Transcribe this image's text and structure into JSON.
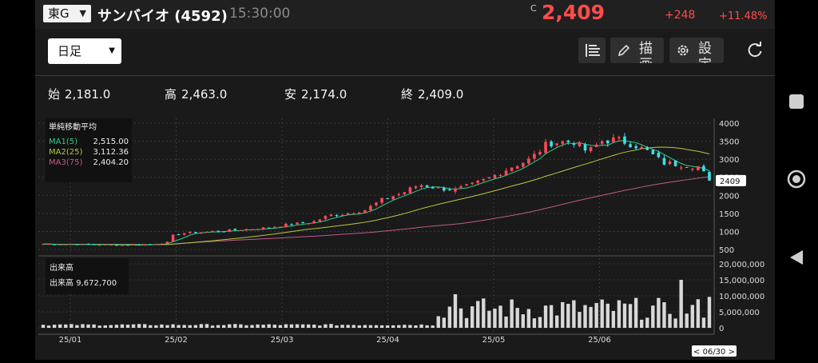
{
  "header": {
    "market": "東G",
    "title": "サンバイオ (4592)",
    "time": "15:30:00",
    "close_mark": "C",
    "price": "2,409",
    "change": "+248",
    "change_pct": "+11.48%"
  },
  "toolbar": {
    "period": "日足",
    "draw_label": "描画",
    "settings_label": "設定"
  },
  "ohlc": {
    "open_label": "始",
    "open": "2,181.0",
    "high_label": "高",
    "high": "2,463.0",
    "low_label": "安",
    "low": "2,174.0",
    "close_label": "終",
    "close": "2,409.0"
  },
  "legend": {
    "title": "単純移動平均",
    "ma1_label": "MA1(5)",
    "ma1_value": "2,515.00",
    "ma2_label": "MA2(25)",
    "ma2_value": "3,112.36",
    "ma3_label": "MA3(75)",
    "ma3_value": "2,404.20"
  },
  "volume_legend": {
    "title": "出来高",
    "label": "出来高",
    "value": "9,672,700"
  },
  "colors": {
    "up": "#ff4a5a",
    "down": "#3ee0e6",
    "ma1": "#2ecc8a",
    "ma2": "#b8c840",
    "ma3": "#c05a8a",
    "volume": "#d8d8d8"
  },
  "chart_data": {
    "type": "candlestick",
    "y_ticks": [
      "4000",
      "3500",
      "3000",
      "2500",
      "2000",
      "1500",
      "1000",
      "500"
    ],
    "y_range": [
      500,
      4000
    ],
    "volume_ticks": [
      "20,000,000",
      "15,000,000",
      "10,000,000",
      "5,000,000",
      "0"
    ],
    "volume_range": [
      0,
      20000000
    ],
    "x_labels": [
      "25/01",
      "25/02",
      "25/03",
      "25/04",
      "25/05",
      "25/06"
    ],
    "current_price_label": "2409",
    "current_date_label": "< 06/30 >",
    "last_close": 2409,
    "last_volume": 9672700
  }
}
